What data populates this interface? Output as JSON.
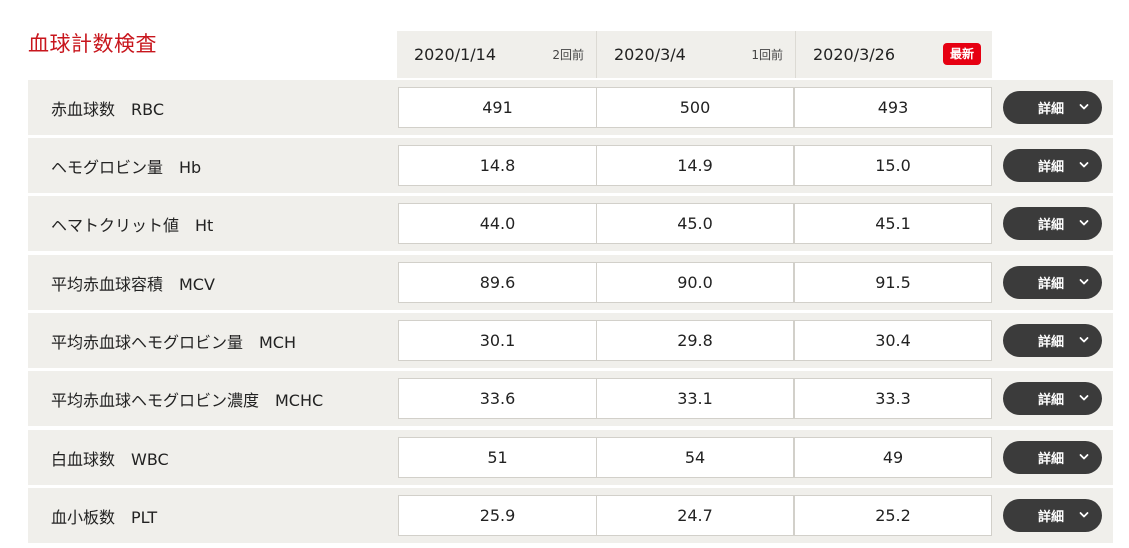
{
  "title": "血球計数検査",
  "columns": [
    {
      "date": "2020/1/14",
      "note": "2回前"
    },
    {
      "date": "2020/3/4",
      "note": "1回前"
    },
    {
      "date": "2020/3/26",
      "badge": "最新"
    }
  ],
  "detail_label": "詳細",
  "rows": [
    {
      "label": "赤血球数　RBC",
      "values": [
        "491",
        "500",
        "493"
      ]
    },
    {
      "label": "ヘモグロビン量　Hb",
      "values": [
        "14.8",
        "14.9",
        "15.0"
      ]
    },
    {
      "label": "ヘマトクリット値　Ht",
      "values": [
        "44.0",
        "45.0",
        "45.1"
      ]
    },
    {
      "label": "平均赤血球容積　MCV",
      "values": [
        "89.6",
        "90.0",
        "91.5"
      ]
    },
    {
      "label": "平均赤血球ヘモグロビン量　MCH",
      "values": [
        "30.1",
        "29.8",
        "30.4"
      ]
    },
    {
      "label": "平均赤血球ヘモグロビン濃度　MCHC",
      "values": [
        "33.6",
        "33.1",
        "33.3"
      ]
    },
    {
      "label": "白血球数　WBC",
      "values": [
        "51",
        "54",
        "49"
      ]
    },
    {
      "label": "血小板数　PLT",
      "values": [
        "25.9",
        "24.7",
        "25.2"
      ]
    }
  ],
  "colors": {
    "accent": "#c8161d",
    "badge": "#e60012",
    "button": "#3b3b3b",
    "row_bg": "#f0efeb"
  }
}
